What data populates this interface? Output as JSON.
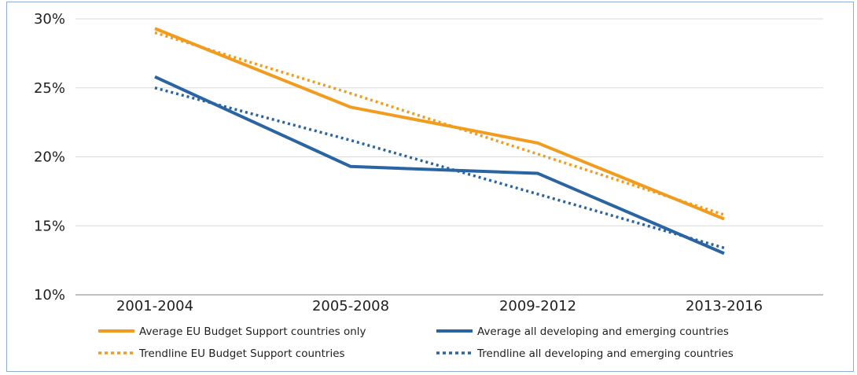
{
  "chart_data": {
    "type": "line",
    "title": "",
    "xlabel": "",
    "ylabel": "",
    "categories": [
      "2001-2004",
      "2005-2008",
      "2009-2012",
      "2013-2016"
    ],
    "ylim": [
      0.1,
      0.3
    ],
    "yticks": [
      0.1,
      0.15,
      0.2,
      0.25,
      0.3
    ],
    "ytick_labels": [
      "10%",
      "15%",
      "20%",
      "25%",
      "30%"
    ],
    "grid": "horizontal",
    "legend_position": "bottom",
    "series": [
      {
        "name": "Average EU Budget Support countries only",
        "values": [
          0.293,
          0.236,
          0.21,
          0.155
        ],
        "color": "#f29c1f",
        "style": "solid"
      },
      {
        "name": "Average all developing and emerging countries",
        "values": [
          0.258,
          0.193,
          0.188,
          0.13
        ],
        "color": "#2a64a1",
        "style": "solid"
      },
      {
        "name": "Trendline EU Budget Support countries",
        "values": [
          0.29,
          0.246,
          0.202,
          0.158
        ],
        "color": "#f29c1f",
        "style": "dotted"
      },
      {
        "name": "Trendline all developing and emerging countries",
        "values": [
          0.25,
          0.212,
          0.173,
          0.134
        ],
        "color": "#2a64a1",
        "style": "dotted"
      }
    ]
  }
}
